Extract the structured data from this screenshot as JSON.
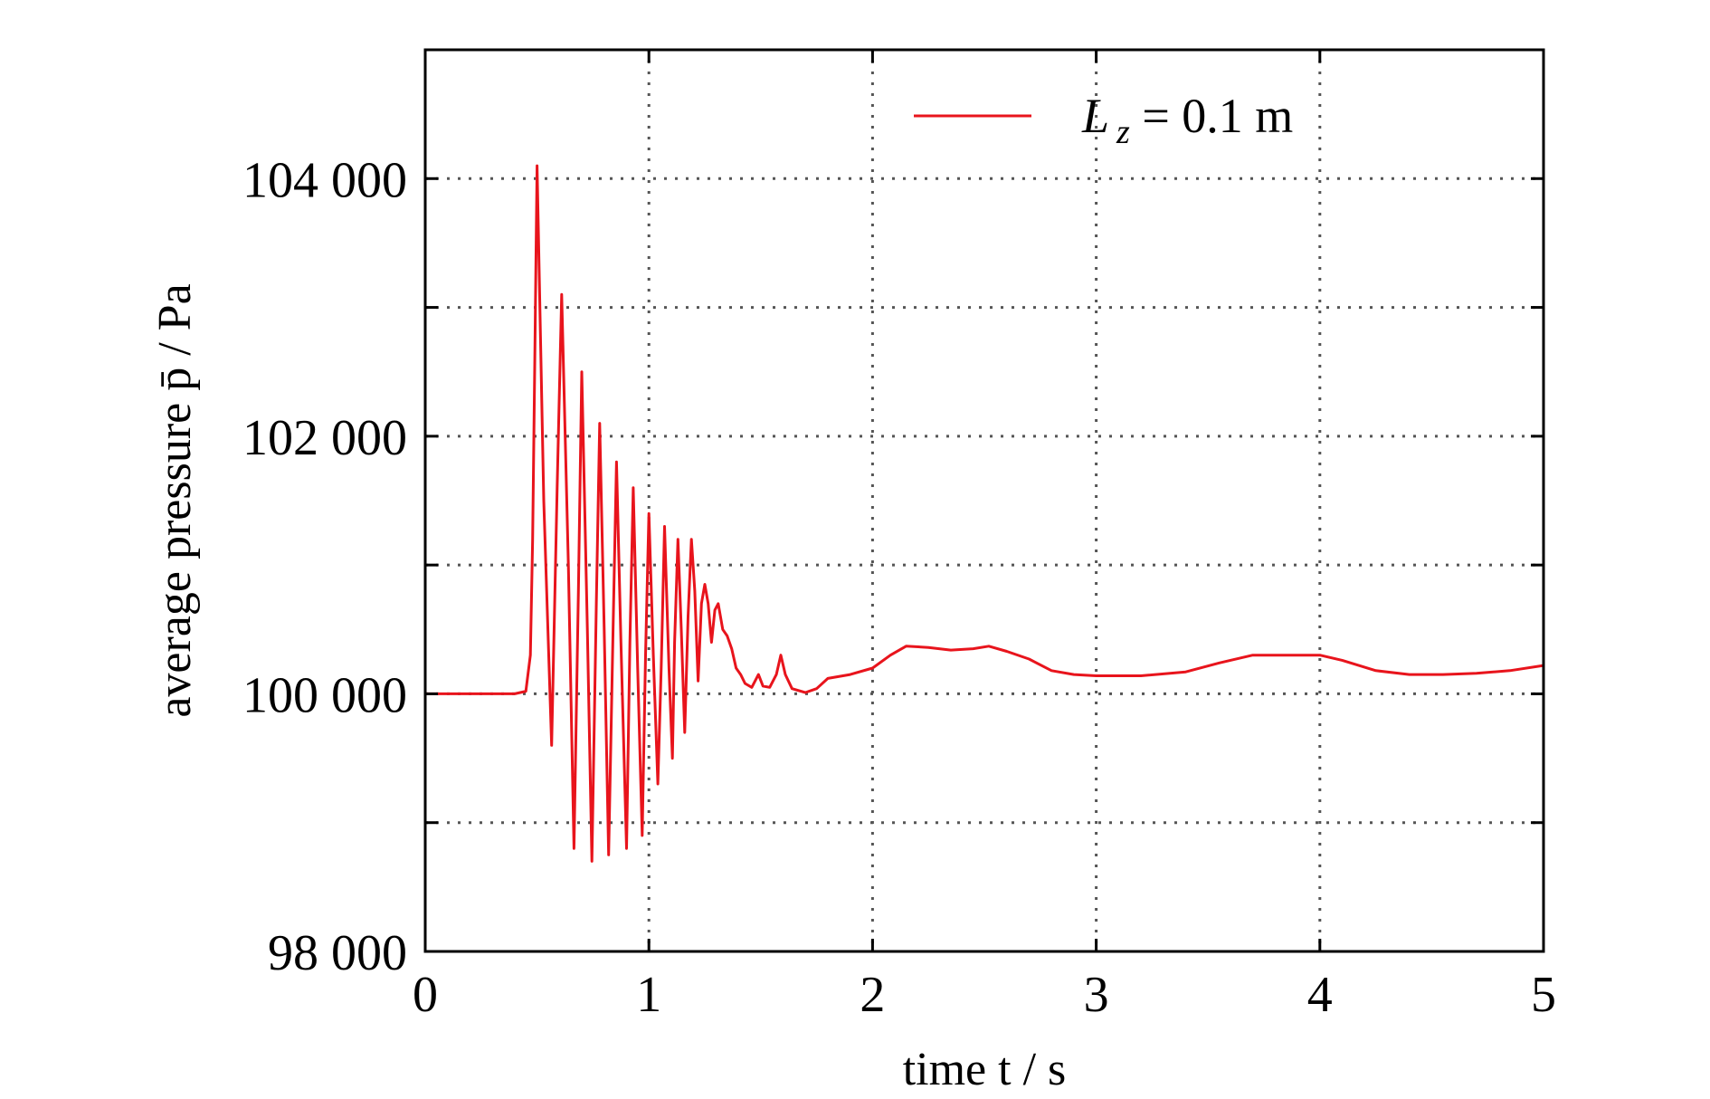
{
  "chart_data": {
    "type": "line",
    "title": "",
    "xlabel": "time t / s",
    "ylabel": "average pressure p̄ / Pa",
    "xlim": [
      0,
      5
    ],
    "ylim": [
      98000,
      105000
    ],
    "x_ticks": [
      0,
      1,
      2,
      3,
      4,
      5
    ],
    "x_tick_labels": [
      "0",
      "1",
      "2",
      "3",
      "4",
      "5"
    ],
    "y_ticks": [
      98000,
      99000,
      100000,
      101000,
      102000,
      103000,
      104000
    ],
    "y_tick_labels": [
      "98 000",
      "",
      "100 000",
      "",
      "102 000",
      "",
      "104 000"
    ],
    "grid": true,
    "grid_style": "dotted",
    "legend_position": "top-right",
    "colors": {
      "series": "#e8141c",
      "axes": "#000000",
      "grid": "#555555"
    },
    "series": [
      {
        "name": "L z = 0.1 m",
        "legend": {
          "symbol": "L",
          "subscript": "z",
          "rest": " = 0.1 m"
        },
        "points": [
          [
            0.0,
            100000
          ],
          [
            0.2,
            100000
          ],
          [
            0.4,
            100000
          ],
          [
            0.45,
            100020
          ],
          [
            0.47,
            100300
          ],
          [
            0.48,
            101200
          ],
          [
            0.49,
            102600
          ],
          [
            0.5,
            104100
          ],
          [
            0.53,
            101500
          ],
          [
            0.565,
            99600
          ],
          [
            0.59,
            101600
          ],
          [
            0.61,
            103100
          ],
          [
            0.64,
            101000
          ],
          [
            0.665,
            98800
          ],
          [
            0.685,
            100800
          ],
          [
            0.7,
            102500
          ],
          [
            0.725,
            100500
          ],
          [
            0.745,
            98700
          ],
          [
            0.765,
            100700
          ],
          [
            0.78,
            102100
          ],
          [
            0.8,
            100500
          ],
          [
            0.82,
            98750
          ],
          [
            0.84,
            100500
          ],
          [
            0.855,
            101800
          ],
          [
            0.875,
            100400
          ],
          [
            0.9,
            98800
          ],
          [
            0.915,
            100400
          ],
          [
            0.93,
            101600
          ],
          [
            0.95,
            100200
          ],
          [
            0.97,
            98900
          ],
          [
            0.985,
            100300
          ],
          [
            1.0,
            101400
          ],
          [
            1.02,
            100300
          ],
          [
            1.04,
            99300
          ],
          [
            1.055,
            100200
          ],
          [
            1.07,
            101300
          ],
          [
            1.09,
            100200
          ],
          [
            1.105,
            99500
          ],
          [
            1.115,
            100400
          ],
          [
            1.13,
            101200
          ],
          [
            1.145,
            100500
          ],
          [
            1.16,
            99700
          ],
          [
            1.175,
            100600
          ],
          [
            1.19,
            101200
          ],
          [
            1.205,
            100800
          ],
          [
            1.22,
            100100
          ],
          [
            1.235,
            100700
          ],
          [
            1.25,
            100850
          ],
          [
            1.265,
            100700
          ],
          [
            1.28,
            100400
          ],
          [
            1.295,
            100650
          ],
          [
            1.31,
            100700
          ],
          [
            1.33,
            100500
          ],
          [
            1.35,
            100450
          ],
          [
            1.37,
            100350
          ],
          [
            1.39,
            100200
          ],
          [
            1.41,
            100150
          ],
          [
            1.43,
            100080
          ],
          [
            1.46,
            100050
          ],
          [
            1.49,
            100150
          ],
          [
            1.51,
            100060
          ],
          [
            1.54,
            100050
          ],
          [
            1.57,
            100150
          ],
          [
            1.59,
            100300
          ],
          [
            1.61,
            100150
          ],
          [
            1.64,
            100040
          ],
          [
            1.7,
            100010
          ],
          [
            1.75,
            100040
          ],
          [
            1.8,
            100120
          ],
          [
            1.9,
            100150
          ],
          [
            2.0,
            100200
          ],
          [
            2.08,
            100300
          ],
          [
            2.15,
            100370
          ],
          [
            2.25,
            100360
          ],
          [
            2.35,
            100340
          ],
          [
            2.45,
            100350
          ],
          [
            2.52,
            100370
          ],
          [
            2.6,
            100330
          ],
          [
            2.7,
            100270
          ],
          [
            2.8,
            100180
          ],
          [
            2.9,
            100150
          ],
          [
            3.0,
            100140
          ],
          [
            3.2,
            100140
          ],
          [
            3.4,
            100170
          ],
          [
            3.55,
            100240
          ],
          [
            3.7,
            100300
          ],
          [
            3.85,
            100300
          ],
          [
            4.0,
            100300
          ],
          [
            4.1,
            100260
          ],
          [
            4.25,
            100180
          ],
          [
            4.4,
            100150
          ],
          [
            4.55,
            100150
          ],
          [
            4.7,
            100160
          ],
          [
            4.85,
            100180
          ],
          [
            5.0,
            100220
          ]
        ]
      }
    ]
  }
}
